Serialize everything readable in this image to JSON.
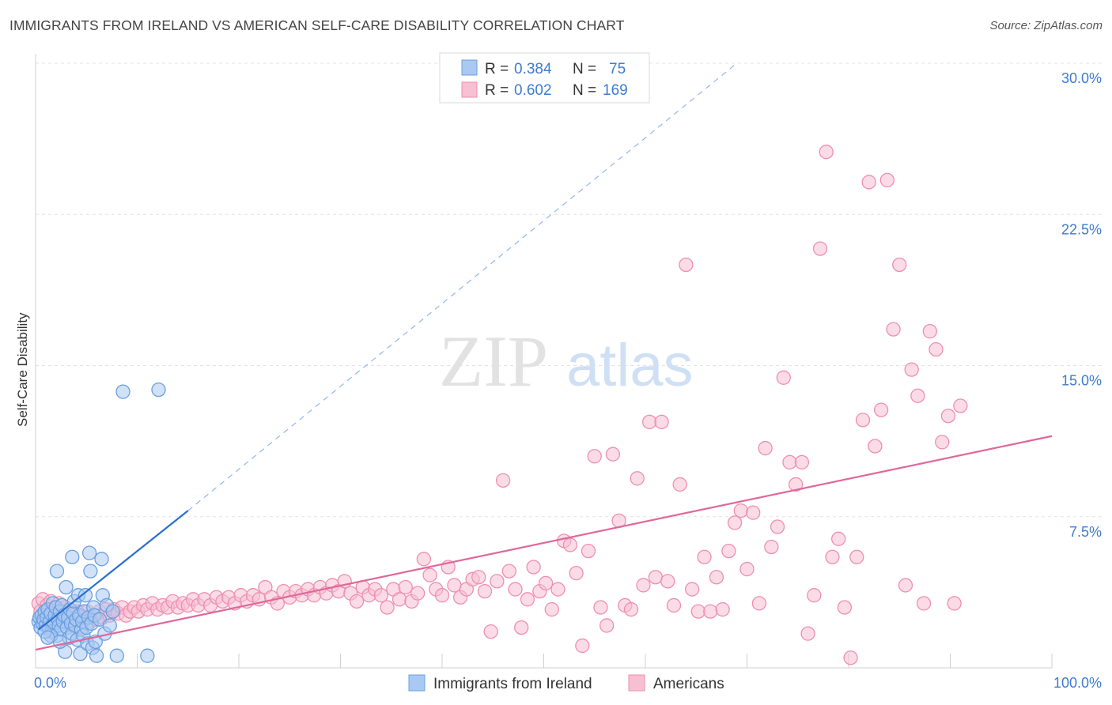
{
  "title": "IMMIGRANTS FROM IRELAND VS AMERICAN SELF-CARE DISABILITY CORRELATION CHART",
  "source": "Source: ZipAtlas.com",
  "watermark": {
    "zip": "ZIP",
    "atlas": "atlas"
  },
  "colors": {
    "blue_fill": "#a9c9f2",
    "blue_stroke": "#6a9fe0",
    "blue_line": "#2a6fd0",
    "pink_fill": "#f7bfd2",
    "pink_stroke": "#ee8fb0",
    "pink_line": "#e0679a",
    "grid": "#e3e3e3",
    "tick_text": "#3e7bd1"
  },
  "legend_box": {
    "rows": [
      {
        "r_label": "R = ",
        "r_value": "0.384",
        "n_label": "N = ",
        "n_value": "75"
      },
      {
        "r_label": "R = ",
        "r_value": "0.602",
        "n_label": "N = ",
        "n_value": "169"
      }
    ]
  },
  "chart_data": {
    "type": "scatter",
    "xlabel": "",
    "ylabel": "Self-Care Disability",
    "xlim": [
      0,
      100
    ],
    "ylim": [
      0,
      30
    ],
    "x_tick_labels": [
      "0.0%",
      "100.0%"
    ],
    "y_ticks": [
      7.5,
      15.0,
      22.5,
      30.0
    ],
    "y_tick_labels": [
      "7.5%",
      "15.0%",
      "22.5%",
      "30.0%"
    ],
    "grid": true,
    "legend_position": "bottom",
    "series": [
      {
        "name": "Immigrants from Ireland",
        "color": "#a9c9f2",
        "trend": {
          "x": [
            0.3,
            15.0
          ],
          "y": [
            1.9,
            7.8
          ],
          "dashed_extension": {
            "x": [
              15.0,
              69.0
            ],
            "y": [
              7.8,
              30.0
            ]
          }
        },
        "points": [
          [
            0.3,
            2.3
          ],
          [
            0.4,
            2.5
          ],
          [
            0.5,
            2.0
          ],
          [
            0.6,
            2.6
          ],
          [
            0.7,
            2.2
          ],
          [
            0.8,
            2.4
          ],
          [
            0.9,
            2.8
          ],
          [
            1.0,
            2.1
          ],
          [
            1.1,
            2.5
          ],
          [
            1.2,
            2.9
          ],
          [
            1.3,
            2.0
          ],
          [
            1.4,
            2.3
          ],
          [
            1.5,
            2.7
          ],
          [
            1.6,
            1.8
          ],
          [
            1.7,
            3.2
          ],
          [
            1.8,
            2.2
          ],
          [
            1.9,
            2.6
          ],
          [
            2.0,
            3.0
          ],
          [
            2.1,
            1.6
          ],
          [
            2.2,
            2.4
          ],
          [
            2.3,
            2.1
          ],
          [
            2.4,
            2.8
          ],
          [
            2.5,
            1.9
          ],
          [
            2.6,
            3.1
          ],
          [
            2.7,
            2.3
          ],
          [
            2.8,
            2.6
          ],
          [
            2.9,
            0.8
          ],
          [
            3.0,
            4.0
          ],
          [
            3.1,
            2.0
          ],
          [
            3.2,
            2.5
          ],
          [
            3.3,
            1.5
          ],
          [
            3.4,
            2.9
          ],
          [
            3.5,
            2.2
          ],
          [
            3.6,
            1.7
          ],
          [
            3.7,
            2.7
          ],
          [
            3.8,
            3.3
          ],
          [
            3.9,
            2.1
          ],
          [
            4.0,
            2.4
          ],
          [
            4.1,
            1.4
          ],
          [
            4.2,
            3.6
          ],
          [
            4.3,
            2.6
          ],
          [
            4.4,
            0.7
          ],
          [
            4.5,
            1.9
          ],
          [
            4.6,
            2.3
          ],
          [
            4.7,
            1.6
          ],
          [
            4.8,
            2.8
          ],
          [
            4.9,
            3.6
          ],
          [
            5.0,
            2.0
          ],
          [
            5.1,
            1.2
          ],
          [
            5.2,
            2.5
          ],
          [
            5.3,
            5.7
          ],
          [
            5.4,
            4.8
          ],
          [
            5.5,
            2.2
          ],
          [
            5.6,
            1.0
          ],
          [
            5.7,
            3.0
          ],
          [
            5.8,
            2.6
          ],
          [
            5.9,
            1.3
          ],
          [
            6.0,
            0.6
          ],
          [
            6.3,
            2.4
          ],
          [
            6.5,
            5.4
          ],
          [
            6.6,
            3.6
          ],
          [
            6.8,
            1.7
          ],
          [
            7.0,
            3.1
          ],
          [
            7.3,
            2.1
          ],
          [
            7.6,
            2.8
          ],
          [
            8.0,
            0.6
          ],
          [
            2.1,
            4.8
          ],
          [
            1.5,
            1.6
          ],
          [
            3.6,
            5.5
          ],
          [
            2.4,
            1.3
          ],
          [
            8.6,
            13.7
          ],
          [
            12.1,
            13.8
          ],
          [
            11.0,
            0.6
          ],
          [
            0.9,
            1.8
          ],
          [
            1.2,
            1.5
          ]
        ]
      },
      {
        "name": "Americans",
        "color": "#f7bfd2",
        "trend": {
          "x": [
            0.0,
            100.0
          ],
          "y": [
            0.9,
            11.5
          ]
        },
        "points": [
          [
            0.3,
            3.2
          ],
          [
            0.5,
            2.8
          ],
          [
            0.7,
            3.4
          ],
          [
            0.9,
            2.6
          ],
          [
            1.1,
            3.1
          ],
          [
            1.3,
            2.9
          ],
          [
            1.5,
            3.3
          ],
          [
            1.7,
            2.7
          ],
          [
            1.9,
            3.0
          ],
          [
            2.1,
            2.5
          ],
          [
            2.3,
            3.2
          ],
          [
            2.5,
            2.8
          ],
          [
            2.7,
            2.4
          ],
          [
            2.9,
            3.0
          ],
          [
            3.1,
            2.6
          ],
          [
            3.3,
            2.9
          ],
          [
            3.5,
            2.3
          ],
          [
            3.7,
            2.7
          ],
          [
            3.9,
            2.5
          ],
          [
            4.1,
            2.8
          ],
          [
            4.3,
            2.4
          ],
          [
            4.5,
            2.6
          ],
          [
            4.8,
            2.5
          ],
          [
            5.1,
            2.8
          ],
          [
            5.4,
            2.3
          ],
          [
            5.7,
            2.6
          ],
          [
            6.0,
            2.4
          ],
          [
            6.3,
            2.8
          ],
          [
            6.6,
            2.5
          ],
          [
            6.9,
            2.9
          ],
          [
            7.3,
            2.6
          ],
          [
            7.7,
            2.9
          ],
          [
            8.1,
            2.7
          ],
          [
            8.5,
            3.0
          ],
          [
            8.9,
            2.6
          ],
          [
            9.3,
            2.8
          ],
          [
            9.7,
            3.0
          ],
          [
            10.1,
            2.8
          ],
          [
            10.6,
            3.1
          ],
          [
            11.0,
            2.9
          ],
          [
            11.5,
            3.2
          ],
          [
            12.0,
            2.9
          ],
          [
            12.5,
            3.1
          ],
          [
            13.0,
            3.0
          ],
          [
            13.5,
            3.3
          ],
          [
            14.0,
            3.0
          ],
          [
            14.5,
            3.2
          ],
          [
            15.0,
            3.1
          ],
          [
            15.5,
            3.4
          ],
          [
            16.0,
            3.1
          ],
          [
            16.6,
            3.4
          ],
          [
            17.2,
            3.1
          ],
          [
            17.8,
            3.5
          ],
          [
            18.4,
            3.3
          ],
          [
            19.0,
            3.5
          ],
          [
            19.6,
            3.2
          ],
          [
            20.2,
            3.6
          ],
          [
            20.8,
            3.3
          ],
          [
            21.4,
            3.6
          ],
          [
            22.0,
            3.4
          ],
          [
            22.6,
            4.0
          ],
          [
            23.2,
            3.5
          ],
          [
            23.8,
            3.2
          ],
          [
            24.4,
            3.8
          ],
          [
            25.0,
            3.5
          ],
          [
            25.6,
            3.8
          ],
          [
            26.2,
            3.6
          ],
          [
            26.8,
            3.9
          ],
          [
            27.4,
            3.6
          ],
          [
            28.0,
            4.0
          ],
          [
            28.6,
            3.7
          ],
          [
            29.2,
            4.1
          ],
          [
            29.8,
            3.8
          ],
          [
            30.4,
            4.3
          ],
          [
            31.0,
            3.7
          ],
          [
            31.6,
            3.3
          ],
          [
            32.2,
            4.0
          ],
          [
            32.8,
            3.6
          ],
          [
            33.4,
            3.9
          ],
          [
            34.0,
            3.6
          ],
          [
            34.6,
            3.0
          ],
          [
            35.2,
            3.9
          ],
          [
            35.8,
            3.4
          ],
          [
            36.4,
            4.0
          ],
          [
            37.0,
            3.3
          ],
          [
            37.6,
            3.7
          ],
          [
            38.2,
            5.4
          ],
          [
            38.8,
            4.6
          ],
          [
            39.4,
            3.9
          ],
          [
            40.0,
            3.6
          ],
          [
            40.6,
            5.0
          ],
          [
            41.2,
            4.1
          ],
          [
            41.8,
            3.5
          ],
          [
            42.4,
            3.9
          ],
          [
            43.0,
            4.4
          ],
          [
            43.6,
            4.5
          ],
          [
            44.2,
            3.8
          ],
          [
            44.8,
            1.8
          ],
          [
            45.4,
            4.3
          ],
          [
            46.0,
            9.3
          ],
          [
            46.6,
            4.8
          ],
          [
            47.2,
            3.9
          ],
          [
            47.8,
            2.0
          ],
          [
            48.4,
            3.4
          ],
          [
            49.0,
            5.0
          ],
          [
            49.6,
            3.8
          ],
          [
            50.2,
            4.2
          ],
          [
            50.8,
            2.9
          ],
          [
            51.4,
            3.9
          ],
          [
            52.0,
            6.3
          ],
          [
            52.6,
            6.1
          ],
          [
            53.2,
            4.7
          ],
          [
            53.8,
            1.1
          ],
          [
            54.4,
            5.8
          ],
          [
            55.0,
            10.5
          ],
          [
            55.6,
            3.0
          ],
          [
            56.2,
            2.1
          ],
          [
            56.8,
            10.6
          ],
          [
            57.4,
            7.3
          ],
          [
            58.0,
            3.1
          ],
          [
            58.6,
            2.9
          ],
          [
            59.2,
            9.4
          ],
          [
            59.8,
            4.1
          ],
          [
            60.4,
            12.2
          ],
          [
            61.0,
            4.5
          ],
          [
            61.6,
            12.2
          ],
          [
            62.2,
            4.3
          ],
          [
            62.8,
            3.1
          ],
          [
            63.4,
            9.1
          ],
          [
            64.0,
            20.0
          ],
          [
            64.6,
            3.9
          ],
          [
            65.2,
            2.8
          ],
          [
            65.8,
            5.5
          ],
          [
            66.4,
            2.8
          ],
          [
            67.0,
            4.5
          ],
          [
            67.6,
            2.9
          ],
          [
            68.2,
            5.8
          ],
          [
            68.8,
            7.2
          ],
          [
            69.4,
            7.8
          ],
          [
            70.0,
            4.9
          ],
          [
            70.6,
            7.7
          ],
          [
            71.2,
            3.2
          ],
          [
            71.8,
            10.9
          ],
          [
            72.4,
            6.0
          ],
          [
            73.0,
            7.0
          ],
          [
            73.6,
            14.4
          ],
          [
            74.2,
            10.2
          ],
          [
            74.8,
            9.1
          ],
          [
            75.4,
            10.2
          ],
          [
            76.0,
            1.7
          ],
          [
            76.6,
            3.6
          ],
          [
            77.2,
            20.8
          ],
          [
            77.8,
            25.6
          ],
          [
            78.4,
            5.5
          ],
          [
            79.0,
            6.4
          ],
          [
            79.6,
            3.0
          ],
          [
            80.2,
            0.5
          ],
          [
            80.8,
            5.5
          ],
          [
            81.4,
            12.3
          ],
          [
            82.0,
            24.1
          ],
          [
            82.6,
            11.0
          ],
          [
            83.2,
            12.8
          ],
          [
            83.8,
            24.2
          ],
          [
            84.4,
            16.8
          ],
          [
            85.0,
            20.0
          ],
          [
            85.6,
            4.1
          ],
          [
            86.2,
            14.8
          ],
          [
            86.8,
            13.5
          ],
          [
            87.4,
            3.2
          ],
          [
            88.0,
            16.7
          ],
          [
            88.6,
            15.8
          ],
          [
            89.2,
            11.2
          ],
          [
            89.8,
            12.5
          ],
          [
            90.4,
            3.2
          ],
          [
            91.0,
            13.0
          ]
        ]
      }
    ]
  }
}
